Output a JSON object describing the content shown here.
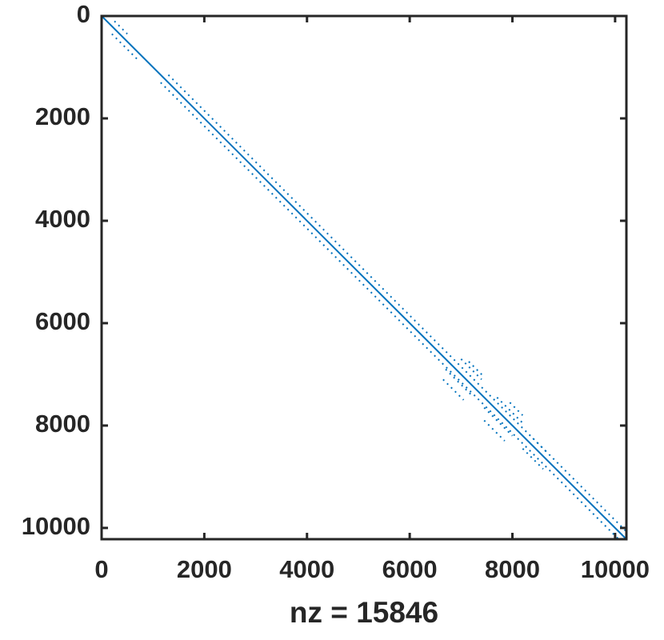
{
  "chart_data": {
    "type": "spy",
    "xlabel": "nz = 15846",
    "xlim": [
      0,
      10220
    ],
    "ylim": [
      0,
      10220
    ],
    "y_reversed": true,
    "xticks": [
      0,
      2000,
      4000,
      6000,
      8000,
      10000
    ],
    "yticks": [
      0,
      2000,
      4000,
      6000,
      8000,
      10000
    ],
    "color": "#0072bd",
    "series": [
      {
        "style": "solid",
        "x": [
          0,
          10220
        ],
        "y": [
          0,
          10220
        ]
      },
      {
        "style": "dotted",
        "x": [
          1300,
          10220
        ],
        "y": [
          1150,
          10070
        ]
      },
      {
        "style": "dotted",
        "x": [
          1150,
          10070
        ],
        "y": [
          1300,
          10220
        ]
      },
      {
        "style": "dotted",
        "x": [
          200,
          700
        ],
        "y": [
          350,
          850
        ]
      },
      {
        "style": "dotted",
        "x": [
          250,
          500
        ],
        "y": [
          100,
          350
        ]
      },
      {
        "style": "dotted",
        "x": [
          6700,
          7200
        ],
        "y": [
          6900,
          7400
        ]
      },
      {
        "style": "dotted",
        "x": [
          7000,
          7400
        ],
        "y": [
          6700,
          7100
        ]
      },
      {
        "style": "dotted",
        "x": [
          6650,
          7050
        ],
        "y": [
          7100,
          7500
        ]
      },
      {
        "style": "dotted",
        "x": [
          7150,
          7450
        ],
        "y": [
          6750,
          7050
        ]
      },
      {
        "style": "dotted",
        "x": [
          7450,
          8000
        ],
        "y": [
          7650,
          8200
        ]
      },
      {
        "style": "dotted",
        "x": [
          7700,
          8200
        ],
        "y": [
          7450,
          7950
        ]
      },
      {
        "style": "dotted",
        "x": [
          7450,
          7850
        ],
        "y": [
          7900,
          8300
        ]
      },
      {
        "style": "dotted",
        "x": [
          7950,
          8200
        ],
        "y": [
          7550,
          7800
        ]
      },
      {
        "style": "dotted",
        "x": [
          8200,
          8600
        ],
        "y": [
          8450,
          8850
        ]
      },
      {
        "style": "dotted",
        "x": [
          8400,
          8700
        ],
        "y": [
          8250,
          8550
        ]
      }
    ]
  }
}
